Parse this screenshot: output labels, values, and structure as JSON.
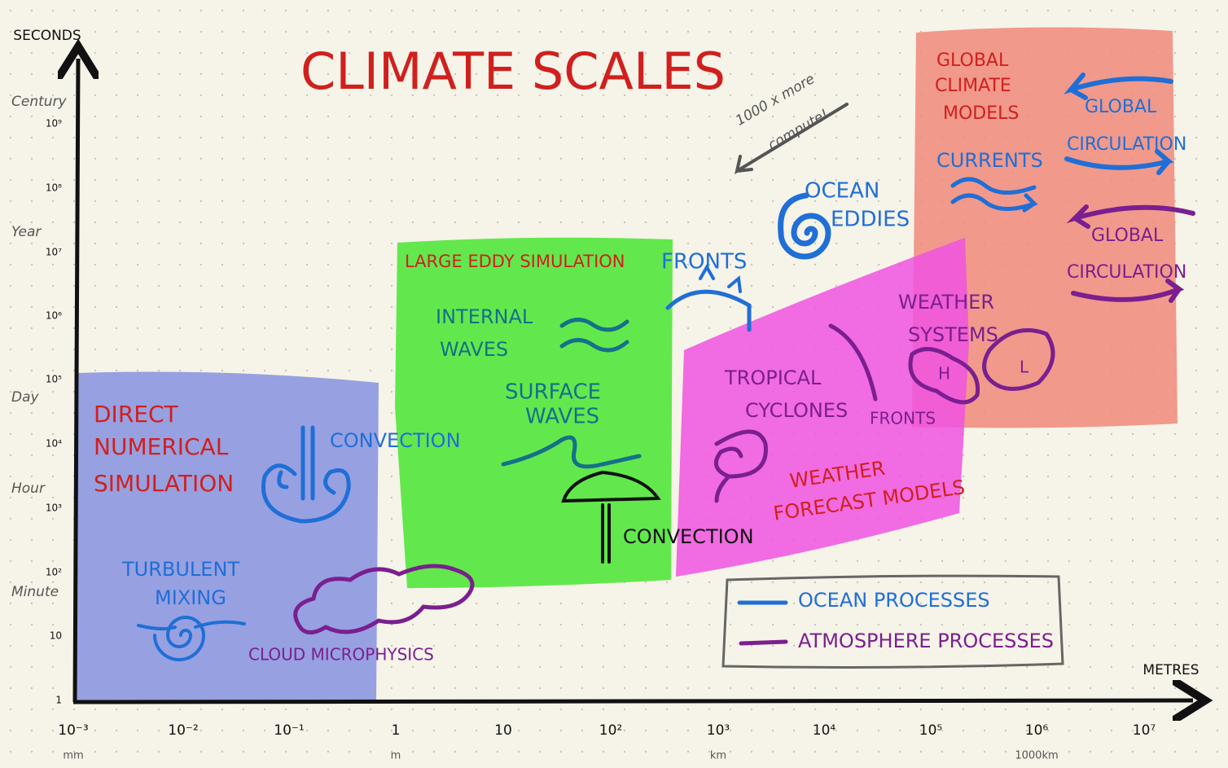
{
  "title": "CLIMATE SCALES",
  "axes": {
    "y_label": "SECONDS",
    "x_label": "METRES",
    "y_ticks": [
      "1",
      "10",
      "10²",
      "10³",
      "10⁴",
      "10⁵",
      "10⁶",
      "10⁷",
      "10⁸",
      "10⁹"
    ],
    "time_labels": [
      "Century",
      "Year",
      "Day",
      "Hour",
      "Minute"
    ],
    "x_ticks": [
      "10⁻³",
      "10⁻²",
      "10⁻¹",
      "1",
      "10",
      "10²",
      "10³",
      "10⁴",
      "10⁵",
      "10⁶",
      "10⁷"
    ],
    "length_labels": [
      "mm",
      "m",
      "km",
      "1000km"
    ]
  },
  "regions": {
    "dns": [
      "DIRECT",
      "NUMERICAL",
      "SIMULATION"
    ],
    "les": [
      "LARGE EDDY SIMULATION"
    ],
    "weather": [
      "WEATHER",
      "FORECAST MODELS"
    ],
    "gcm": [
      "GLOBAL",
      "CLIMATE",
      "MODELS"
    ]
  },
  "processes": {
    "convection_small": [
      "CONVECTION"
    ],
    "turbulent_mixing": [
      "TURBULENT",
      "MIXING"
    ],
    "cloud_microphysics": [
      "CLOUD MICROPHYSICS"
    ],
    "internal_waves": [
      "INTERNAL",
      "WAVES"
    ],
    "surface_waves": [
      "SURFACE",
      "WAVES"
    ],
    "convection_large": [
      "CONVECTION"
    ],
    "ocean_fronts": [
      "FRONTS"
    ],
    "ocean_eddies": [
      "OCEAN",
      "EDDIES"
    ],
    "tropical_cyclones": [
      "TROPICAL",
      "CYCLONES"
    ],
    "atmosphere_fronts": [
      "FRONTS"
    ],
    "weather_systems": [
      "WEATHER",
      "SYSTEMS"
    ],
    "pressure": [
      "H",
      "L"
    ],
    "currents": [
      "CURRENTS"
    ],
    "ocean_circulation": [
      "GLOBAL",
      "CIRCULATION"
    ],
    "atmosphere_circulation": [
      "GLOBAL",
      "CIRCULATION"
    ]
  },
  "annotation": [
    "1000 x more",
    "compute!"
  ],
  "legend": [
    "OCEAN PROCESSES",
    "ATMOSPHERE PROCESSES"
  ]
}
